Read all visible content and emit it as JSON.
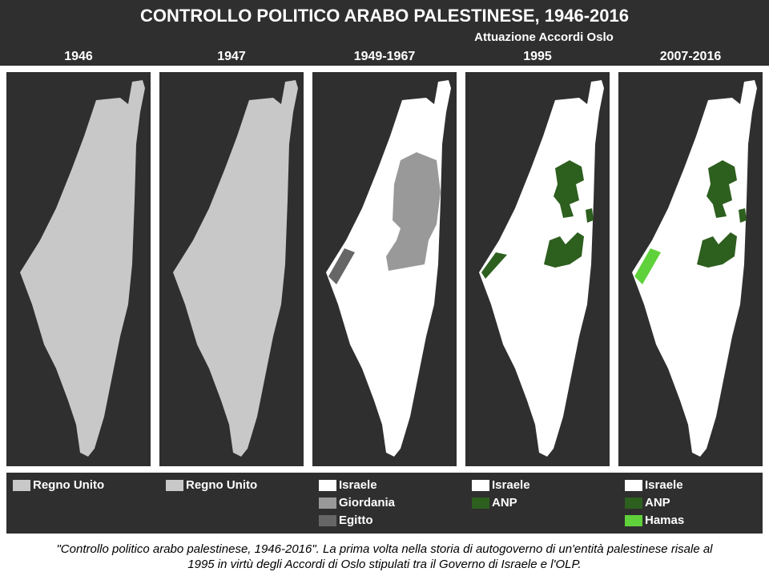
{
  "title": "CONTROLLO POLITICO ARABO PALESTINESE, 1946-2016",
  "subtitle": "Attuazione Accordi Oslo",
  "panels": [
    {
      "year": "1946",
      "legend": [
        {
          "label": "Regno Unito",
          "color": "#c8c8c8"
        }
      ]
    },
    {
      "year": "1947",
      "legend": [
        {
          "label": "Regno Unito",
          "color": "#c8c8c8"
        }
      ]
    },
    {
      "year": "1949-1967",
      "legend": [
        {
          "label": "Israele",
          "color": "#ffffff"
        },
        {
          "label": "Giordania",
          "color": "#999999"
        },
        {
          "label": "Egitto",
          "color": "#666666"
        }
      ]
    },
    {
      "year": "1995",
      "legend": [
        {
          "label": "Israele",
          "color": "#ffffff"
        },
        {
          "label": "ANP",
          "color": "#2d5f1e"
        }
      ]
    },
    {
      "year": "2007-2016",
      "legend": [
        {
          "label": "Israele",
          "color": "#ffffff"
        },
        {
          "label": "ANP",
          "color": "#2d5f1e"
        },
        {
          "label": "Hamas",
          "color": "#5fd13a"
        }
      ]
    }
  ],
  "caption": [
    "\"Controllo politico arabo palestinese, 1946-2016\". La prima volta nella storia di autogoverno di un'entità palestinese risale al",
    "1995 in virtù degli Accordi di Oslo stipulati tra il Governo di Israele e l'OLP."
  ]
}
